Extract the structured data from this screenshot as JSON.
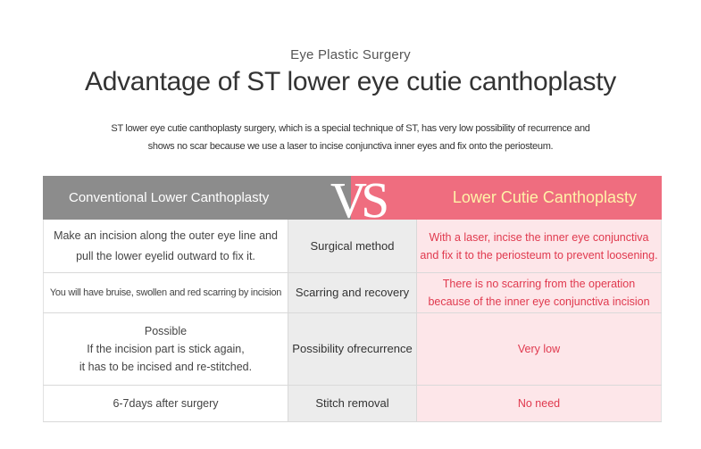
{
  "header": {
    "subtitle": "Eye Plastic Surgery",
    "title": "Advantage of ST lower eye cutie canthoplasty",
    "description_line1": "ST lower eye cutie canthoplasty surgery, which is a special technique of ST, has very low possibility of recurrence and",
    "description_line2": "shows no scar because we use a laser to incise conjunctiva inner eyes and fix onto the periosteum."
  },
  "comparison": {
    "left_heading": "Conventional Lower  Canthoplasty",
    "vs_label": "VS",
    "right_heading": "Lower Cutie Canthoplasty",
    "colors": {
      "left_header": "#8c8c8c",
      "right_header": "#ef6d7f",
      "right_text": "#e0394e",
      "right_bg": "#fde6e9",
      "accent_text": "#fff3a8"
    },
    "rows": [
      {
        "conventional": [
          "Make an incision along the outer eye line and",
          "pull the lower eyelid outward to fix it."
        ],
        "category": [
          "Surgical method"
        ],
        "cutie": [
          "With a laser, incise the inner eye conjunctiva",
          "and fix it to the periosteum to prevent loosening."
        ]
      },
      {
        "conventional": [
          "You will have bruise, swollen and red scarring by incision"
        ],
        "category": [
          "Scarring and recovery"
        ],
        "cutie": [
          "There is no scarring from the operation",
          "because of the inner eye conjunctiva incision"
        ]
      },
      {
        "conventional": [
          "Possible",
          "If the incision part is stick again,",
          "it has to be incised and re-stitched."
        ],
        "category": [
          "Possibility of",
          "recurrence"
        ],
        "cutie": [
          "Very low"
        ]
      },
      {
        "conventional": [
          "6-7days after surgery"
        ],
        "category": [
          "Stitch removal"
        ],
        "cutie": [
          "No need"
        ]
      }
    ]
  }
}
